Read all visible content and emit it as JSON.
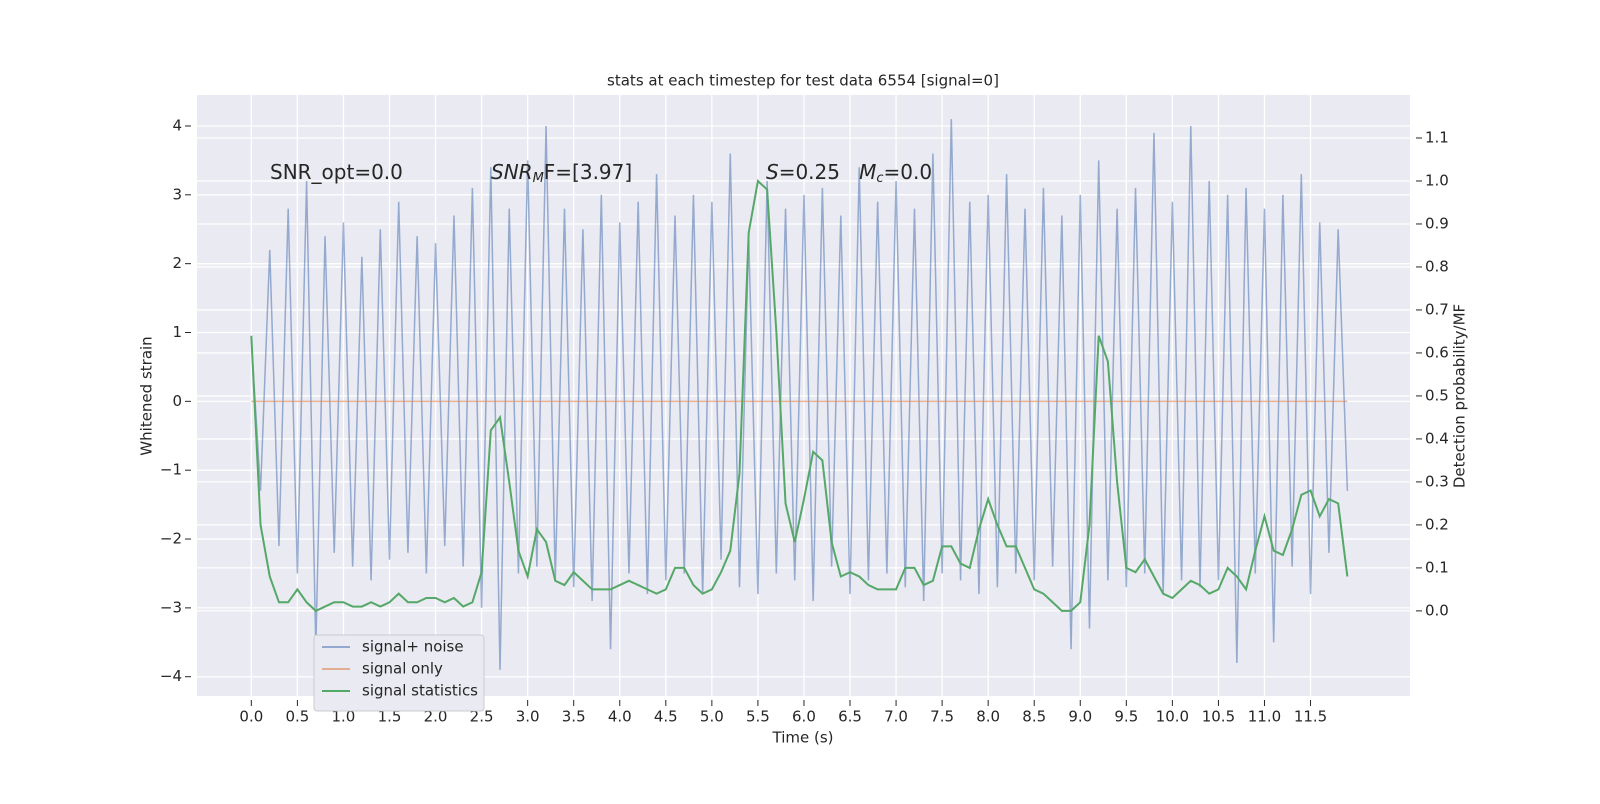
{
  "chart_data": {
    "type": "line",
    "title": "stats at each timestep for test data 6554 [signal=0]",
    "xlabel": "Time (s)",
    "ylabel": "Whitened strain",
    "y2label": "Detection probability/MF",
    "annotations": [
      [
        {
          "text": "SNR_opt=0.0",
          "style": "normal"
        }
      ],
      [
        {
          "text": "SNR",
          "style": "italic"
        },
        {
          "text": "M",
          "style": "sub"
        },
        {
          "text": "F=[3.97]",
          "style": "normal"
        }
      ],
      [
        {
          "text": "S",
          "style": "italic"
        },
        {
          "text": "=0.25   ",
          "style": "normal"
        },
        {
          "text": "M",
          "style": "italic"
        },
        {
          "text": "c",
          "style": "sub"
        },
        {
          "text": "=0.0",
          "style": "normal"
        }
      ]
    ],
    "x": [
      0.0,
      0.1,
      0.2,
      0.3,
      0.4,
      0.5,
      0.6,
      0.7,
      0.8,
      0.9,
      1.0,
      1.1,
      1.2,
      1.3,
      1.4,
      1.5,
      1.6,
      1.7,
      1.8,
      1.9,
      2.0,
      2.1,
      2.2,
      2.3,
      2.4,
      2.5,
      2.6,
      2.7,
      2.8,
      2.9,
      3.0,
      3.1,
      3.2,
      3.3,
      3.4,
      3.5,
      3.6,
      3.7,
      3.8,
      3.9,
      4.0,
      4.1,
      4.2,
      4.3,
      4.4,
      4.5,
      4.6,
      4.7,
      4.8,
      4.9,
      5.0,
      5.1,
      5.2,
      5.3,
      5.4,
      5.5,
      5.6,
      5.7,
      5.8,
      5.9,
      6.0,
      6.1,
      6.2,
      6.3,
      6.4,
      6.5,
      6.6,
      6.7,
      6.8,
      6.9,
      7.0,
      7.1,
      7.2,
      7.3,
      7.4,
      7.5,
      7.6,
      7.7,
      7.8,
      7.9,
      8.0,
      8.1,
      8.2,
      8.3,
      8.4,
      8.5,
      8.6,
      8.7,
      8.8,
      8.9,
      9.0,
      9.1,
      9.2,
      9.3,
      9.4,
      9.5,
      9.6,
      9.7,
      9.8,
      9.9,
      10.0,
      10.1,
      10.2,
      10.3,
      10.4,
      10.5,
      10.6,
      10.7,
      10.8,
      10.9,
      11.0,
      11.1,
      11.2,
      11.3,
      11.4,
      11.5,
      11.6,
      11.7,
      11.8,
      11.9
    ],
    "series": [
      {
        "name": "signal+ noise",
        "color": "#4c72b0",
        "alpha": 0.55,
        "axis": "y",
        "values": [
          0.9,
          -1.3,
          2.2,
          -2.1,
          2.8,
          -2.5,
          3.2,
          -3.6,
          2.4,
          -2.2,
          2.6,
          -2.4,
          2.1,
          -2.6,
          2.5,
          -2.3,
          2.9,
          -2.2,
          2.4,
          -2.5,
          2.3,
          -2.1,
          2.7,
          -2.4,
          3.1,
          -3.0,
          3.4,
          -3.9,
          2.8,
          -2.5,
          3.5,
          -2.4,
          4.0,
          -2.6,
          2.8,
          -2.7,
          2.5,
          -2.9,
          3.0,
          -3.6,
          2.6,
          -2.5,
          2.9,
          -2.8,
          3.3,
          -2.6,
          2.7,
          -2.5,
          3.0,
          -2.8,
          2.9,
          -2.3,
          3.6,
          -2.7,
          2.4,
          -2.8,
          3.2,
          -2.5,
          2.8,
          -2.6,
          3.0,
          -2.9,
          3.1,
          -2.4,
          2.7,
          -2.8,
          3.4,
          -2.6,
          2.9,
          -2.5,
          3.2,
          -2.7,
          2.8,
          -2.9,
          3.6,
          -2.5,
          4.1,
          -2.6,
          2.9,
          -2.8,
          3.0,
          -2.7,
          3.3,
          -2.5,
          2.8,
          -2.6,
          3.1,
          -2.4,
          2.7,
          -3.6,
          3.0,
          -3.3,
          3.5,
          -2.6,
          2.8,
          -2.7,
          3.1,
          -2.5,
          3.9,
          -2.8,
          2.9,
          -2.6,
          4.0,
          -2.7,
          3.2,
          -2.6,
          3.0,
          -3.8,
          3.1,
          -2.5,
          2.8,
          -3.5,
          3.0,
          -2.4,
          3.3,
          -2.8,
          2.6,
          -2.2,
          2.5,
          -1.3
        ]
      },
      {
        "name": "signal only",
        "color": "#dd8452",
        "alpha": 0.6,
        "axis": "y",
        "values": [
          0,
          0,
          0,
          0,
          0,
          0,
          0,
          0,
          0,
          0,
          0,
          0,
          0,
          0,
          0,
          0,
          0,
          0,
          0,
          0,
          0,
          0,
          0,
          0,
          0,
          0,
          0,
          0,
          0,
          0,
          0,
          0,
          0,
          0,
          0,
          0,
          0,
          0,
          0,
          0,
          0,
          0,
          0,
          0,
          0,
          0,
          0,
          0,
          0,
          0,
          0,
          0,
          0,
          0,
          0,
          0,
          0,
          0,
          0,
          0,
          0,
          0,
          0,
          0,
          0,
          0,
          0,
          0,
          0,
          0,
          0,
          0,
          0,
          0,
          0,
          0,
          0,
          0,
          0,
          0,
          0,
          0,
          0,
          0,
          0,
          0,
          0,
          0,
          0,
          0,
          0,
          0,
          0,
          0,
          0,
          0,
          0,
          0,
          0,
          0,
          0,
          0,
          0,
          0,
          0,
          0,
          0,
          0,
          0,
          0,
          0,
          0,
          0,
          0,
          0,
          0,
          0,
          0,
          0,
          0
        ]
      },
      {
        "name": "signal statistics",
        "color": "#55a868",
        "alpha": 1,
        "axis": "y2",
        "values": [
          0.64,
          0.2,
          0.08,
          0.02,
          0.02,
          0.05,
          0.02,
          0.0,
          0.01,
          0.02,
          0.02,
          0.01,
          0.01,
          0.02,
          0.01,
          0.02,
          0.04,
          0.02,
          0.02,
          0.03,
          0.03,
          0.02,
          0.03,
          0.01,
          0.02,
          0.09,
          0.42,
          0.45,
          0.3,
          0.14,
          0.08,
          0.19,
          0.16,
          0.07,
          0.06,
          0.09,
          0.07,
          0.05,
          0.05,
          0.05,
          0.06,
          0.07,
          0.06,
          0.05,
          0.04,
          0.05,
          0.1,
          0.1,
          0.06,
          0.04,
          0.05,
          0.09,
          0.14,
          0.32,
          0.88,
          1.0,
          0.98,
          0.65,
          0.25,
          0.16,
          0.26,
          0.37,
          0.35,
          0.16,
          0.08,
          0.09,
          0.08,
          0.06,
          0.05,
          0.05,
          0.05,
          0.1,
          0.1,
          0.06,
          0.07,
          0.15,
          0.15,
          0.11,
          0.1,
          0.19,
          0.26,
          0.2,
          0.15,
          0.15,
          0.1,
          0.05,
          0.04,
          0.02,
          0.0,
          0.0,
          0.02,
          0.2,
          0.64,
          0.58,
          0.3,
          0.1,
          0.09,
          0.12,
          0.08,
          0.04,
          0.03,
          0.05,
          0.07,
          0.06,
          0.04,
          0.05,
          0.1,
          0.08,
          0.05,
          0.14,
          0.22,
          0.14,
          0.13,
          0.19,
          0.27,
          0.28,
          0.22,
          0.26,
          0.25,
          0.08
        ]
      }
    ],
    "xlim": [
      -0.59,
      12.58
    ],
    "ylim": [
      -4.28,
      4.45
    ],
    "y2lim": [
      -0.198,
      1.2
    ],
    "xticks": [
      {
        "value": 0,
        "label": "0.0"
      },
      {
        "value": 0.5,
        "label": "0.5"
      },
      {
        "value": 1,
        "label": "1.0"
      },
      {
        "value": 1.5,
        "label": "1.5"
      },
      {
        "value": 2,
        "label": "2.0"
      },
      {
        "value": 2.5,
        "label": "2.5"
      },
      {
        "value": 3,
        "label": "3.0"
      },
      {
        "value": 3.5,
        "label": "3.5"
      },
      {
        "value": 4,
        "label": "4.0"
      },
      {
        "value": 4.5,
        "label": "4.5"
      },
      {
        "value": 5,
        "label": "5.0"
      },
      {
        "value": 5.5,
        "label": "5.5"
      },
      {
        "value": 6,
        "label": "6.0"
      },
      {
        "value": 6.5,
        "label": "6.5"
      },
      {
        "value": 7,
        "label": "7.0"
      },
      {
        "value": 7.5,
        "label": "7.5"
      },
      {
        "value": 8,
        "label": "8.0"
      },
      {
        "value": 8.5,
        "label": "8.5"
      },
      {
        "value": 9,
        "label": "9.0"
      },
      {
        "value": 9.5,
        "label": "9.5"
      },
      {
        "value": 10,
        "label": "10.0"
      },
      {
        "value": 10.5,
        "label": "10.5"
      },
      {
        "value": 11,
        "label": "11.0"
      },
      {
        "value": 11.5,
        "label": "11.5"
      }
    ],
    "yticks": [
      {
        "value": -4,
        "label": "−4"
      },
      {
        "value": -3,
        "label": "−3"
      },
      {
        "value": -2,
        "label": "−2"
      },
      {
        "value": -1,
        "label": "−1"
      },
      0,
      1,
      2,
      3,
      4
    ],
    "y2ticks": [
      {
        "value": 0,
        "label": "0.0"
      },
      0.1,
      0.2,
      0.3,
      0.4,
      0.5,
      0.6,
      0.7,
      0.8,
      0.9,
      {
        "value": 1,
        "label": "1.0"
      },
      1.1
    ],
    "grid": true,
    "legend": "lower left"
  }
}
